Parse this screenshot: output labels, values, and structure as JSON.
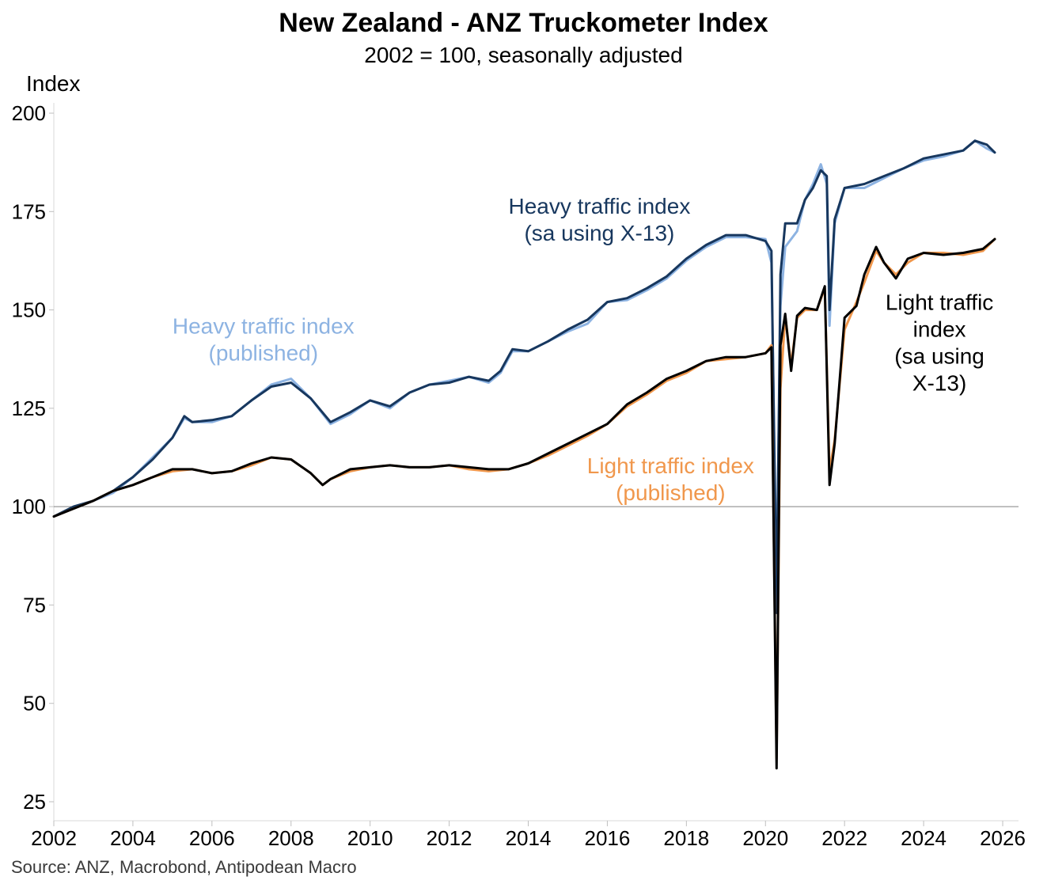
{
  "header": {
    "title": "New Zealand - ANZ Truckometer Index",
    "subtitle": "2002 = 100, seasonally adjusted"
  },
  "footer": {
    "source": "Source: ANZ, Macrobond, Antipodean Macro"
  },
  "colors": {
    "heavy_published": "#8db3e2",
    "heavy_x13": "#17375e",
    "light_published": "#f0974c",
    "light_x13": "#000000",
    "baseline": "#808080",
    "axis": "#d9d9d9"
  },
  "chart_data": {
    "type": "line",
    "title": "New Zealand - ANZ Truckometer Index",
    "subtitle": "2002 = 100, seasonally adjusted",
    "xlabel": "",
    "ylabel": "Index",
    "xlim": [
      2002,
      2026.4
    ],
    "ylim": [
      25,
      200
    ],
    "x_ticks": [
      "2002",
      "2004",
      "2006",
      "2008",
      "2010",
      "2012",
      "2014",
      "2016",
      "2018",
      "2020",
      "2022",
      "2024",
      "2026"
    ],
    "y_ticks": [
      "25",
      "50",
      "75",
      "100",
      "125",
      "150",
      "175",
      "200"
    ],
    "reference_line": {
      "y": 100
    },
    "grid": false,
    "legend": "none (series labelled directly on chart)",
    "annotations": [
      {
        "series": "heavy_published",
        "lines": [
          "Heavy traffic index",
          "(published)"
        ],
        "x": 2007.3,
        "y": 144
      },
      {
        "series": "heavy_x13",
        "lines": [
          "Heavy traffic index",
          "(sa using X-13)"
        ],
        "x": 2015.8,
        "y": 174.5
      },
      {
        "series": "light_published",
        "lines": [
          "Light traffic index",
          "(published)"
        ],
        "x": 2017.6,
        "y": 108.5
      },
      {
        "series": "light_x13",
        "lines": [
          "Light traffic",
          "index",
          "(sa using",
          "X-13)"
        ],
        "x": 2024.4,
        "y": 150
      }
    ],
    "series": [
      {
        "key": "heavy_published",
        "color": "#8db3e2",
        "width": 3,
        "points": [
          [
            2002.0,
            97.5
          ],
          [
            2002.5,
            99.5
          ],
          [
            2003.0,
            101.5
          ],
          [
            2003.5,
            103.5
          ],
          [
            2004.0,
            107.5
          ],
          [
            2004.5,
            112.5
          ],
          [
            2005.0,
            117.5
          ],
          [
            2005.3,
            122.5
          ],
          [
            2005.5,
            121.5
          ],
          [
            2006.0,
            121.5
          ],
          [
            2006.5,
            123.0
          ],
          [
            2007.0,
            127.0
          ],
          [
            2007.5,
            131.0
          ],
          [
            2008.0,
            132.5
          ],
          [
            2008.5,
            127.5
          ],
          [
            2009.0,
            121.0
          ],
          [
            2009.5,
            123.5
          ],
          [
            2010.0,
            127.0
          ],
          [
            2010.5,
            125.0
          ],
          [
            2011.0,
            129.0
          ],
          [
            2011.5,
            131.0
          ],
          [
            2012.0,
            132.0
          ],
          [
            2012.5,
            133.0
          ],
          [
            2013.0,
            131.5
          ],
          [
            2013.3,
            134.0
          ],
          [
            2013.6,
            139.5
          ],
          [
            2014.0,
            139.5
          ],
          [
            2014.5,
            142.0
          ],
          [
            2015.0,
            144.5
          ],
          [
            2015.5,
            146.5
          ],
          [
            2016.0,
            152.0
          ],
          [
            2016.5,
            152.5
          ],
          [
            2017.0,
            155.0
          ],
          [
            2017.5,
            158.0
          ],
          [
            2018.0,
            162.5
          ],
          [
            2018.5,
            166.0
          ],
          [
            2019.0,
            168.5
          ],
          [
            2019.5,
            168.5
          ],
          [
            2020.0,
            168.0
          ],
          [
            2020.15,
            162.0
          ],
          [
            2020.28,
            80.0
          ],
          [
            2020.38,
            151.0
          ],
          [
            2020.5,
            166.0
          ],
          [
            2020.8,
            170.0
          ],
          [
            2021.0,
            178.0
          ],
          [
            2021.2,
            182.0
          ],
          [
            2021.4,
            187.0
          ],
          [
            2021.55,
            182.0
          ],
          [
            2021.62,
            146.0
          ],
          [
            2021.75,
            172.0
          ],
          [
            2022.0,
            181.0
          ],
          [
            2022.5,
            181.0
          ],
          [
            2023.0,
            183.5
          ],
          [
            2023.5,
            186.0
          ],
          [
            2024.0,
            188.0
          ],
          [
            2024.5,
            189.0
          ],
          [
            2025.0,
            190.5
          ],
          [
            2025.3,
            193.0
          ],
          [
            2025.6,
            191.0
          ],
          [
            2025.8,
            190.0
          ]
        ]
      },
      {
        "key": "heavy_x13",
        "color": "#17375e",
        "width": 3,
        "points": [
          [
            2002.0,
            97.5
          ],
          [
            2002.5,
            100.0
          ],
          [
            2003.0,
            101.5
          ],
          [
            2003.5,
            104.0
          ],
          [
            2004.0,
            107.5
          ],
          [
            2004.5,
            112.0
          ],
          [
            2005.0,
            117.5
          ],
          [
            2005.3,
            123.0
          ],
          [
            2005.5,
            121.5
          ],
          [
            2006.0,
            122.0
          ],
          [
            2006.5,
            123.0
          ],
          [
            2007.0,
            127.0
          ],
          [
            2007.5,
            130.5
          ],
          [
            2008.0,
            131.5
          ],
          [
            2008.5,
            127.5
          ],
          [
            2009.0,
            121.5
          ],
          [
            2009.5,
            124.0
          ],
          [
            2010.0,
            127.0
          ],
          [
            2010.5,
            125.5
          ],
          [
            2011.0,
            129.0
          ],
          [
            2011.5,
            131.0
          ],
          [
            2012.0,
            131.5
          ],
          [
            2012.5,
            133.0
          ],
          [
            2013.0,
            132.0
          ],
          [
            2013.3,
            134.5
          ],
          [
            2013.6,
            140.0
          ],
          [
            2014.0,
            139.5
          ],
          [
            2014.5,
            142.0
          ],
          [
            2015.0,
            145.0
          ],
          [
            2015.5,
            147.5
          ],
          [
            2016.0,
            152.0
          ],
          [
            2016.5,
            153.0
          ],
          [
            2017.0,
            155.5
          ],
          [
            2017.5,
            158.5
          ],
          [
            2018.0,
            163.0
          ],
          [
            2018.5,
            166.5
          ],
          [
            2019.0,
            169.0
          ],
          [
            2019.5,
            169.0
          ],
          [
            2020.0,
            167.5
          ],
          [
            2020.15,
            165.0
          ],
          [
            2020.28,
            73.0
          ],
          [
            2020.38,
            159.0
          ],
          [
            2020.5,
            172.0
          ],
          [
            2020.8,
            172.0
          ],
          [
            2021.0,
            178.0
          ],
          [
            2021.2,
            181.0
          ],
          [
            2021.4,
            185.5
          ],
          [
            2021.55,
            184.0
          ],
          [
            2021.62,
            150.0
          ],
          [
            2021.75,
            173.0
          ],
          [
            2022.0,
            181.0
          ],
          [
            2022.5,
            182.0
          ],
          [
            2023.0,
            184.0
          ],
          [
            2023.5,
            186.0
          ],
          [
            2024.0,
            188.5
          ],
          [
            2024.5,
            189.5
          ],
          [
            2025.0,
            190.5
          ],
          [
            2025.3,
            193.0
          ],
          [
            2025.6,
            192.0
          ],
          [
            2025.8,
            190.0
          ]
        ]
      },
      {
        "key": "light_published",
        "color": "#f0974c",
        "width": 3,
        "points": [
          [
            2002.0,
            97.5
          ],
          [
            2002.5,
            99.5
          ],
          [
            2003.0,
            101.5
          ],
          [
            2003.5,
            104.0
          ],
          [
            2004.0,
            105.5
          ],
          [
            2004.5,
            107.5
          ],
          [
            2005.0,
            109.0
          ],
          [
            2005.5,
            109.5
          ],
          [
            2006.0,
            108.5
          ],
          [
            2006.5,
            109.0
          ],
          [
            2007.0,
            110.5
          ],
          [
            2007.5,
            112.5
          ],
          [
            2008.0,
            112.0
          ],
          [
            2008.5,
            108.5
          ],
          [
            2008.8,
            105.5
          ],
          [
            2009.0,
            107.0
          ],
          [
            2009.5,
            109.0
          ],
          [
            2010.0,
            110.0
          ],
          [
            2010.5,
            110.5
          ],
          [
            2011.0,
            110.0
          ],
          [
            2011.5,
            110.0
          ],
          [
            2012.0,
            110.5
          ],
          [
            2012.5,
            109.5
          ],
          [
            2013.0,
            109.0
          ],
          [
            2013.5,
            109.5
          ],
          [
            2014.0,
            111.0
          ],
          [
            2014.5,
            113.0
          ],
          [
            2015.0,
            115.5
          ],
          [
            2015.5,
            118.0
          ],
          [
            2016.0,
            121.0
          ],
          [
            2016.5,
            125.5
          ],
          [
            2017.0,
            128.5
          ],
          [
            2017.5,
            132.0
          ],
          [
            2018.0,
            134.0
          ],
          [
            2018.5,
            137.0
          ],
          [
            2019.0,
            137.5
          ],
          [
            2019.5,
            138.0
          ],
          [
            2020.0,
            139.0
          ],
          [
            2020.15,
            141.0
          ],
          [
            2020.28,
            36.0
          ],
          [
            2020.38,
            130.0
          ],
          [
            2020.5,
            148.5
          ],
          [
            2020.65,
            136.0
          ],
          [
            2020.8,
            148.0
          ],
          [
            2021.0,
            150.0
          ],
          [
            2021.3,
            150.0
          ],
          [
            2021.5,
            155.5
          ],
          [
            2021.62,
            109.0
          ],
          [
            2021.75,
            117.0
          ],
          [
            2022.0,
            145.0
          ],
          [
            2022.3,
            152.0
          ],
          [
            2022.5,
            157.0
          ],
          [
            2022.8,
            165.0
          ],
          [
            2023.0,
            162.0
          ],
          [
            2023.3,
            159.0
          ],
          [
            2023.6,
            162.0
          ],
          [
            2024.0,
            164.5
          ],
          [
            2024.5,
            164.5
          ],
          [
            2025.0,
            164.0
          ],
          [
            2025.5,
            165.0
          ],
          [
            2025.8,
            168.0
          ]
        ]
      },
      {
        "key": "light_x13",
        "color": "#000000",
        "width": 3,
        "points": [
          [
            2002.0,
            97.5
          ],
          [
            2002.5,
            99.5
          ],
          [
            2003.0,
            101.5
          ],
          [
            2003.5,
            104.0
          ],
          [
            2004.0,
            105.5
          ],
          [
            2004.5,
            107.5
          ],
          [
            2005.0,
            109.5
          ],
          [
            2005.5,
            109.5
          ],
          [
            2006.0,
            108.5
          ],
          [
            2006.5,
            109.0
          ],
          [
            2007.0,
            111.0
          ],
          [
            2007.5,
            112.5
          ],
          [
            2008.0,
            112.0
          ],
          [
            2008.5,
            108.5
          ],
          [
            2008.8,
            105.5
          ],
          [
            2009.0,
            107.0
          ],
          [
            2009.5,
            109.5
          ],
          [
            2010.0,
            110.0
          ],
          [
            2010.5,
            110.5
          ],
          [
            2011.0,
            110.0
          ],
          [
            2011.5,
            110.0
          ],
          [
            2012.0,
            110.5
          ],
          [
            2012.5,
            110.0
          ],
          [
            2013.0,
            109.5
          ],
          [
            2013.5,
            109.5
          ],
          [
            2014.0,
            111.0
          ],
          [
            2014.5,
            113.5
          ],
          [
            2015.0,
            116.0
          ],
          [
            2015.5,
            118.5
          ],
          [
            2016.0,
            121.0
          ],
          [
            2016.5,
            126.0
          ],
          [
            2017.0,
            129.0
          ],
          [
            2017.5,
            132.5
          ],
          [
            2018.0,
            134.5
          ],
          [
            2018.5,
            137.0
          ],
          [
            2019.0,
            138.0
          ],
          [
            2019.5,
            138.0
          ],
          [
            2020.0,
            139.0
          ],
          [
            2020.15,
            140.5
          ],
          [
            2020.28,
            33.5
          ],
          [
            2020.38,
            141.0
          ],
          [
            2020.5,
            149.0
          ],
          [
            2020.65,
            134.5
          ],
          [
            2020.8,
            148.5
          ],
          [
            2021.0,
            150.5
          ],
          [
            2021.3,
            150.0
          ],
          [
            2021.5,
            156.0
          ],
          [
            2021.62,
            105.5
          ],
          [
            2021.75,
            116.0
          ],
          [
            2022.0,
            148.0
          ],
          [
            2022.3,
            151.0
          ],
          [
            2022.5,
            159.0
          ],
          [
            2022.8,
            166.0
          ],
          [
            2023.0,
            162.0
          ],
          [
            2023.3,
            158.0
          ],
          [
            2023.6,
            163.0
          ],
          [
            2024.0,
            164.5
          ],
          [
            2024.5,
            164.0
          ],
          [
            2025.0,
            164.5
          ],
          [
            2025.5,
            165.5
          ],
          [
            2025.8,
            168.0
          ]
        ]
      }
    ]
  }
}
